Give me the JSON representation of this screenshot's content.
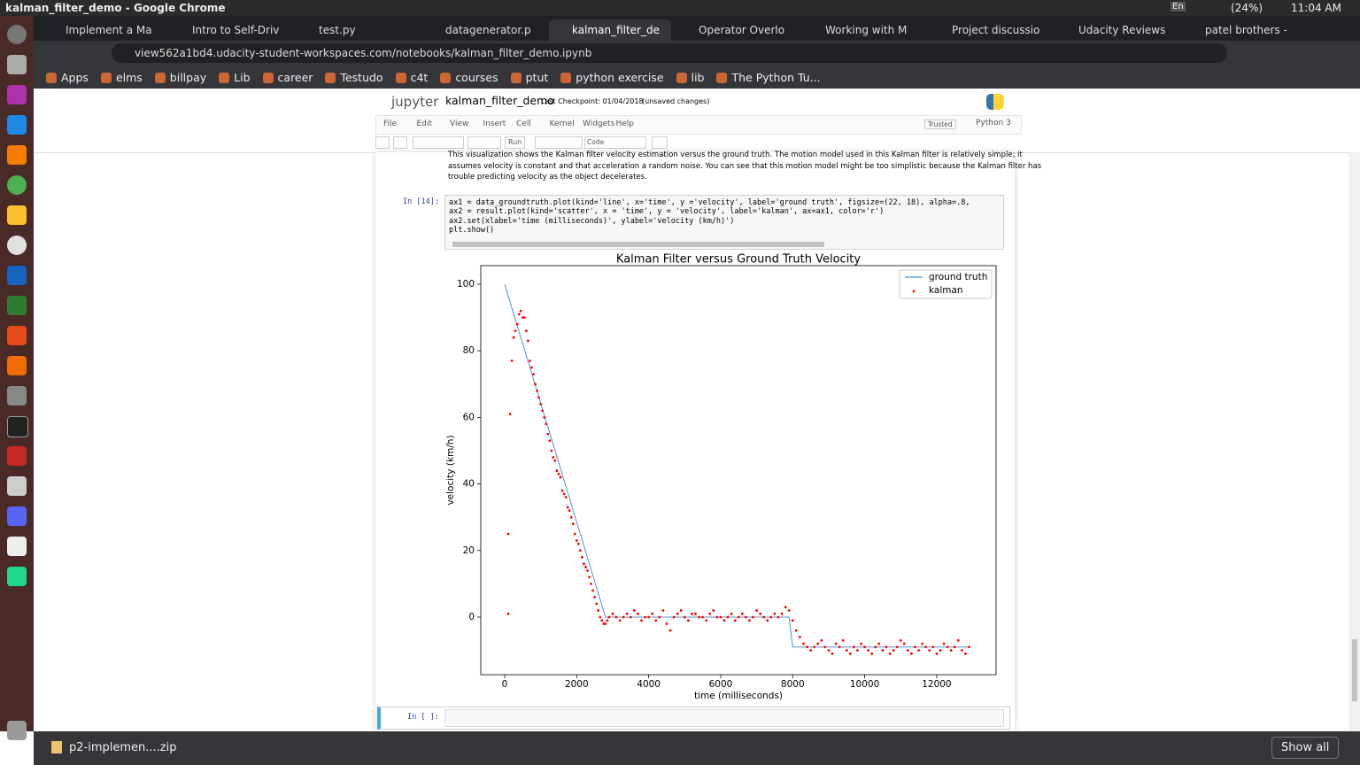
{
  "window_title": "kalman_filter_demo - Google Chrome",
  "system": {
    "lang": "En",
    "battery": "(24%)",
    "clock": "11:04 AM"
  },
  "tabs": [
    "Implement a Ma",
    "Intro to Self-Driv",
    "test.py",
    "datagenerator.p",
    "kalman_filter_de",
    "Operator Overlo",
    "Working with M",
    "Project discussio",
    "Udacity Reviews",
    "patel brothers -"
  ],
  "url": "view562a1bd4.udacity-student-workspaces.com/notebooks/kalman_filter_demo.ipynb",
  "bookmarks": [
    "Apps",
    "elms",
    "billpay",
    "Lib",
    "career",
    "Testudo",
    "c4t",
    "courses",
    "ptut",
    "python exercise",
    "lib",
    "The Python Tu..."
  ],
  "notebook": {
    "logo": "jupyter",
    "name": "kalman_filter_demo",
    "checkpoint": "Last Checkpoint: 01/04/2018",
    "status": "(unsaved changes)",
    "menu": [
      "File",
      "Edit",
      "View",
      "Insert",
      "Cell",
      "Kernel",
      "Widgets",
      "Help"
    ],
    "trusted": "Trusted",
    "kernel": "Python 3",
    "run": "Run",
    "cell_type": "Code",
    "markdown": [
      "This visualization shows the Kalman filter velocity estimation versus the ground truth. The motion model used in this Kalman filter is relatively simple; it",
      "assumes velocity is constant and that acceleration a random noise. You can see that this motion model might be too simplistic because the Kalman filter has",
      "trouble predicting velocity as the object decelerates."
    ],
    "prompt": "In [14]:",
    "code": [
      "ax1 = data_groundtruth.plot(kind='line', x='time', y ='velocity', label='ground truth', figsize=(22, 18), alpha=.8,",
      "ax2 = result.plot(kind='scatter', x = 'time', y = 'velocity', label='kalman', ax=ax1, color='r')",
      "ax2.set(xlabel='time (milliseconds)', ylabel='velocity (km/h)')",
      "plt.show()"
    ],
    "empty_prompt": "In [ ]:"
  },
  "chart_data": {
    "type": "line",
    "title": "Kalman Filter versus Ground Truth Velocity",
    "xlabel": "time (milliseconds)",
    "ylabel": "velocity (km/h)",
    "xlim": [
      -664,
      13650
    ],
    "ylim": [
      -17.3,
      105.6
    ],
    "xticks": [
      0,
      2000,
      4000,
      6000,
      8000,
      10000,
      12000
    ],
    "yticks": [
      0,
      20,
      40,
      60,
      80,
      100
    ],
    "legend": "upper right",
    "series": [
      {
        "name": "ground truth",
        "type": "line",
        "color": "#1f77b4",
        "x": [
          0,
          2800,
          7900,
          8000,
          12900
        ],
        "values": [
          100,
          0,
          0,
          -9,
          -9
        ]
      },
      {
        "name": "kalman",
        "type": "scatter",
        "color": "#ff0000",
        "x": [
          100,
          100,
          150,
          200,
          250,
          300,
          350,
          400,
          450,
          500,
          550,
          600,
          650,
          700,
          750,
          800,
          850,
          900,
          950,
          1000,
          1050,
          1100,
          1150,
          1200,
          1250,
          1300,
          1350,
          1400,
          1450,
          1500,
          1550,
          1600,
          1650,
          1700,
          1750,
          1800,
          1850,
          1900,
          1950,
          2000,
          2050,
          2100,
          2150,
          2200,
          2250,
          2300,
          2350,
          2400,
          2450,
          2500,
          2550,
          2600,
          2650,
          2700,
          2750,
          2800,
          2850,
          2900,
          3000,
          3100,
          3200,
          3300,
          3400,
          3500,
          3600,
          3700,
          3800,
          3900,
          4000,
          4100,
          4200,
          4300,
          4400,
          4500,
          4600,
          4700,
          4800,
          4900,
          5000,
          5100,
          5200,
          5300,
          5400,
          5500,
          5600,
          5700,
          5800,
          5900,
          6000,
          6100,
          6200,
          6300,
          6400,
          6500,
          6600,
          6700,
          6800,
          6900,
          7000,
          7100,
          7200,
          7300,
          7400,
          7500,
          7600,
          7700,
          7800,
          7900,
          8000,
          8100,
          8200,
          8300,
          8400,
          8500,
          8600,
          8700,
          8800,
          8900,
          9000,
          9100,
          9200,
          9300,
          9400,
          9500,
          9600,
          9700,
          9800,
          9900,
          10000,
          10100,
          10200,
          10300,
          10400,
          10500,
          10600,
          10700,
          10800,
          10900,
          11000,
          11100,
          11200,
          11300,
          11400,
          11500,
          11600,
          11700,
          11800,
          11900,
          12000,
          12100,
          12200,
          12300,
          12400,
          12500,
          12600,
          12700,
          12800,
          12900
        ],
        "values": [
          1,
          25,
          61,
          77,
          84,
          86,
          88,
          91,
          92,
          90,
          90,
          86,
          83,
          77,
          75,
          73,
          70,
          68,
          66,
          64,
          62,
          60,
          58,
          55,
          53,
          50,
          48,
          47,
          44,
          43,
          42,
          38,
          37,
          36,
          33,
          32,
          30,
          28,
          25,
          23,
          22,
          20,
          18,
          16,
          15,
          14,
          12,
          10,
          8,
          6,
          4,
          2,
          0,
          -1,
          -2,
          -2,
          -1,
          0,
          1,
          0,
          -1,
          0,
          1,
          0,
          2,
          1,
          -1,
          0,
          0,
          1,
          -1,
          0,
          2,
          -2,
          -4,
          0,
          1,
          2,
          0,
          -1,
          1,
          1,
          0,
          0,
          -1,
          1,
          2,
          0,
          0,
          -1,
          0,
          1,
          -1,
          0,
          1,
          0,
          -1,
          0,
          2,
          1,
          0,
          -1,
          0,
          1,
          0,
          1,
          3,
          2,
          -1,
          -4,
          -6,
          -8,
          -9,
          -10,
          -9,
          -8,
          -7,
          -9,
          -10,
          -11,
          -8,
          -9,
          -7,
          -10,
          -11,
          -9,
          -10,
          -8,
          -9,
          -10,
          -11,
          -9,
          -8,
          -10,
          -9,
          -11,
          -10,
          -9,
          -7,
          -8,
          -10,
          -11,
          -9,
          -10,
          -8,
          -9,
          -10,
          -9,
          -11,
          -10,
          -8,
          -9,
          -10,
          -9,
          -7,
          -10,
          -11,
          -9
        ]
      }
    ]
  },
  "downloads": {
    "file": "p2-implemen....zip",
    "show_all": "Show all"
  }
}
